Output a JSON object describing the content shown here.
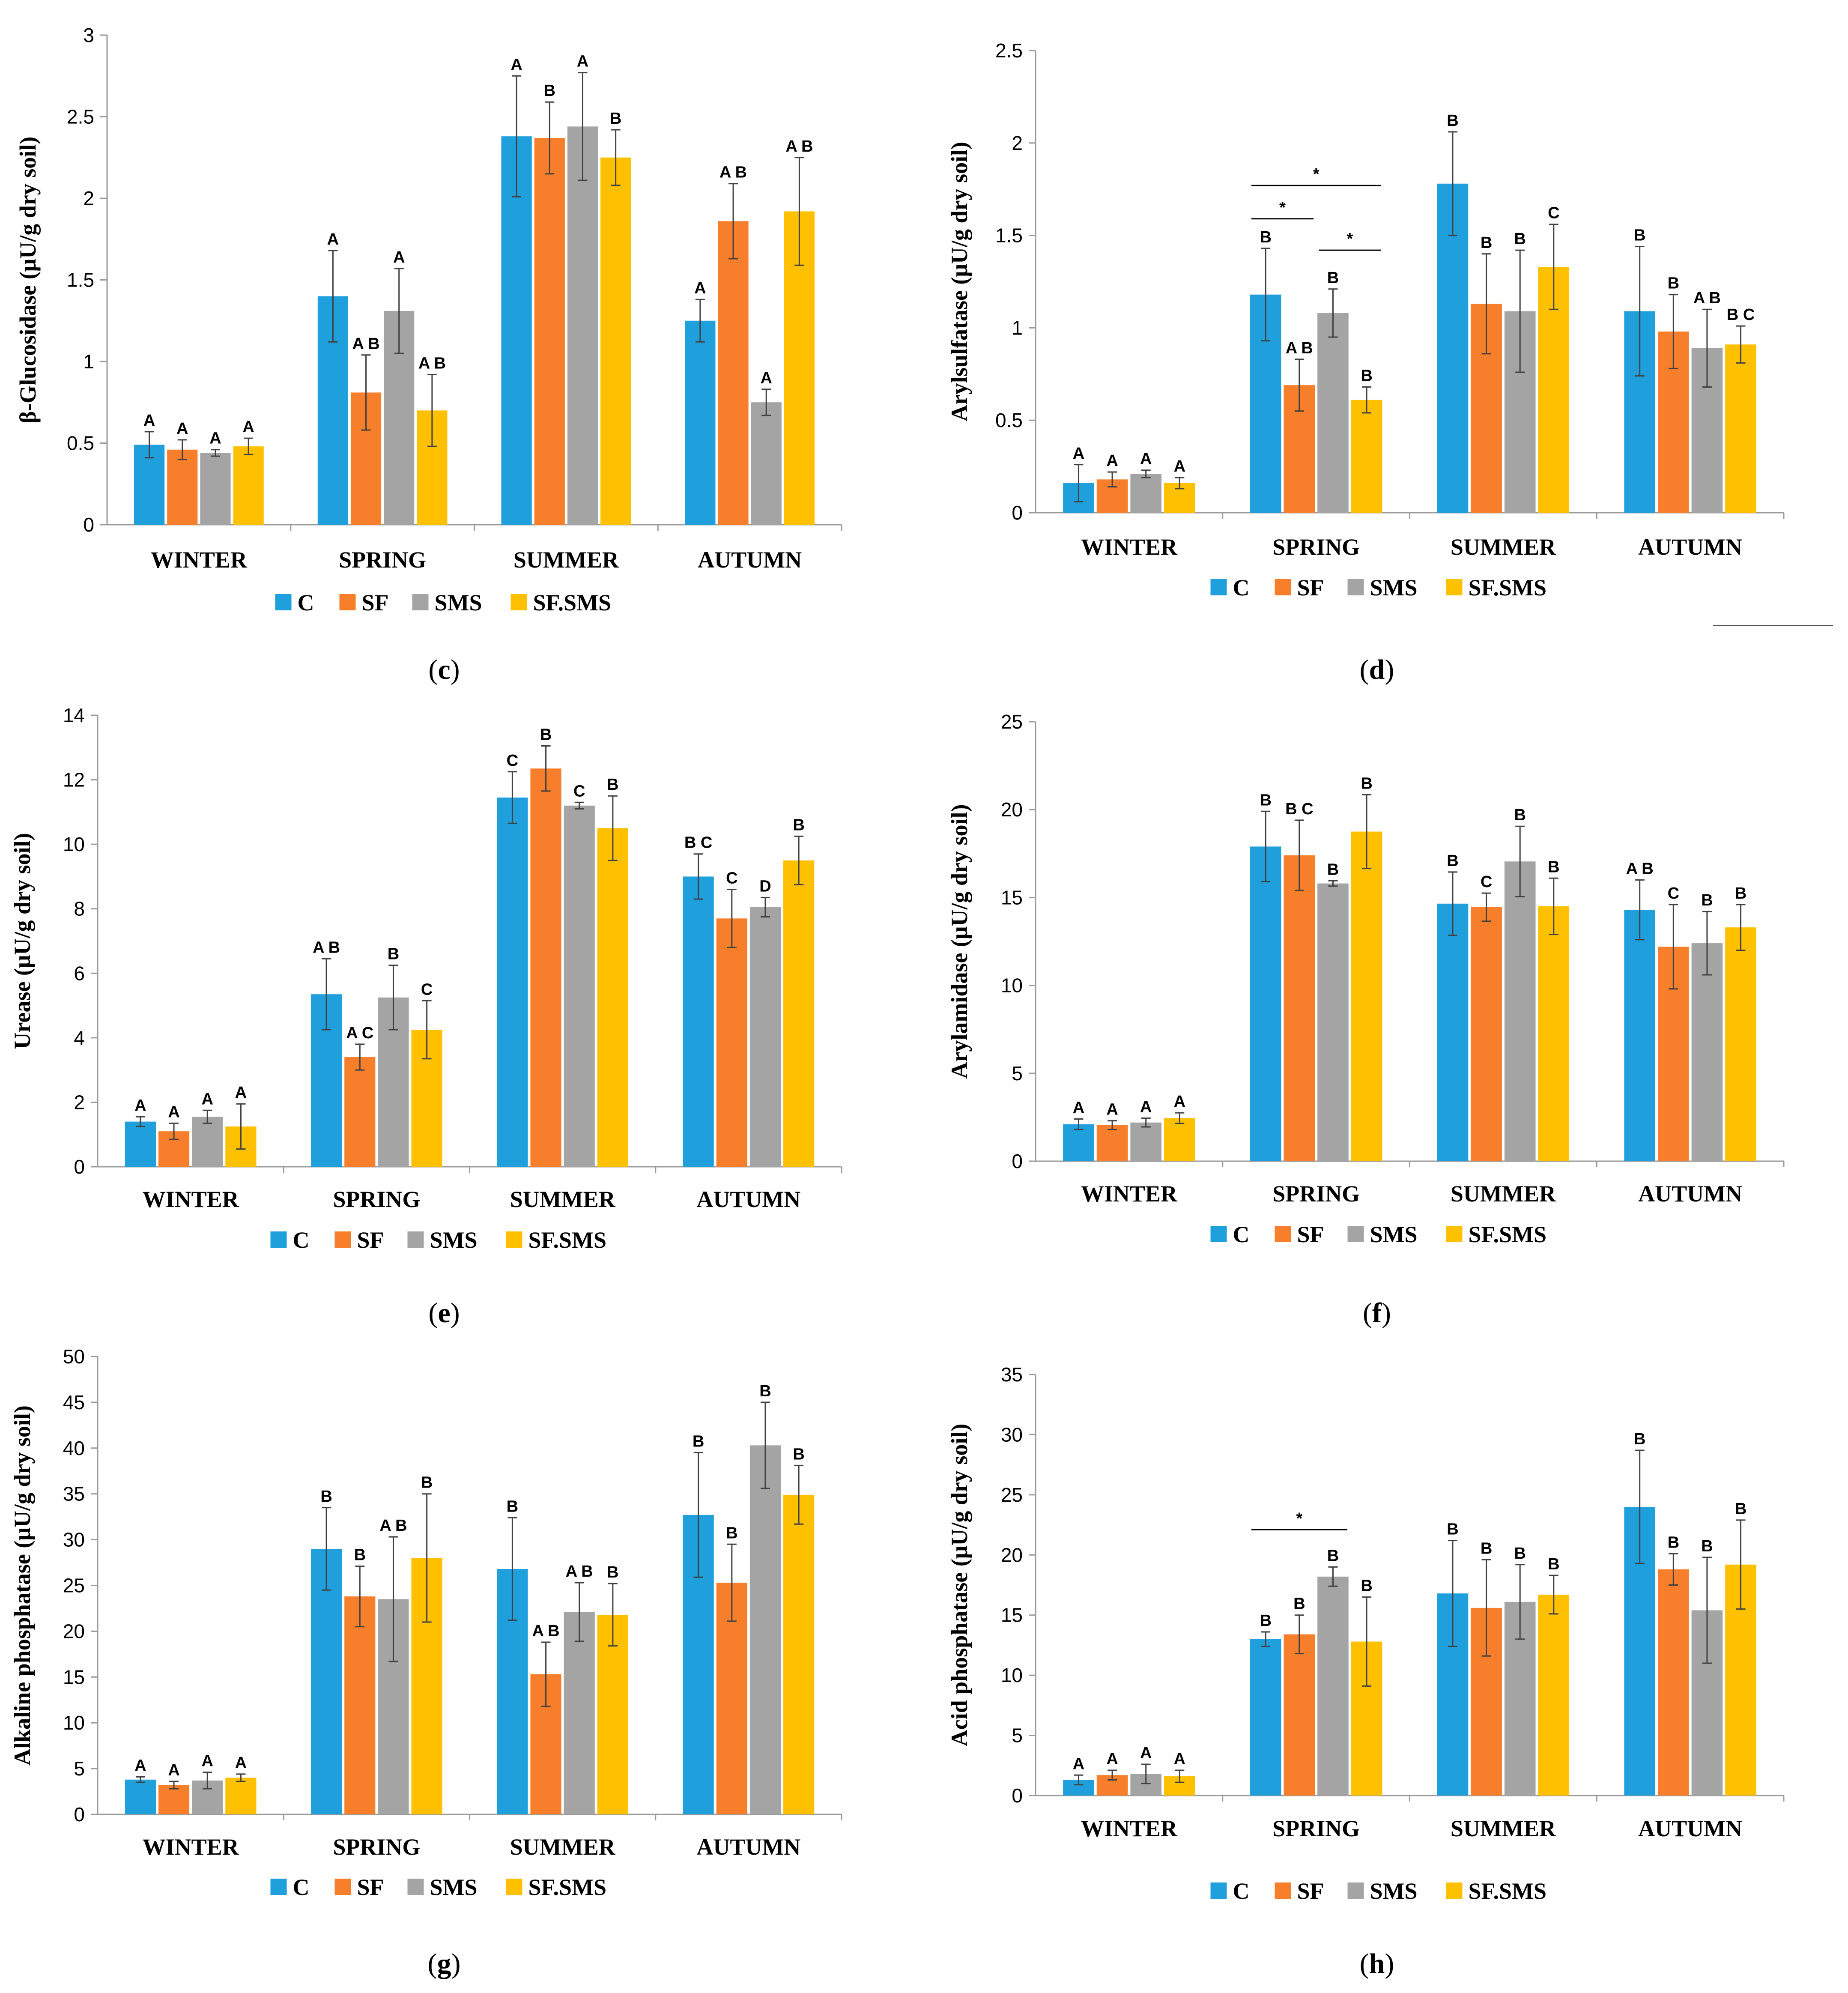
{
  "colors": {
    "C": "#1f9fdc",
    "SF": "#f77f2b",
    "SMS": "#a4a4a4",
    "SF.SMS": "#ffc000"
  },
  "legend": [
    "C",
    "SF",
    "SMS",
    "SF.SMS"
  ],
  "chart_data": [
    {
      "type": "bar",
      "panel": "c",
      "ylabel": "β-Glucosidase (μU/g dry soil)",
      "categories": [
        "WINTER",
        "SPRING",
        "SUMMER",
        "AUTUMN"
      ],
      "ylim": [
        0,
        3
      ],
      "yticks": [
        "0",
        "0.5",
        "1",
        "1.5",
        "2",
        "2.5",
        "3"
      ],
      "series": [
        {
          "name": "C",
          "values": [
            0.49,
            1.4,
            2.38,
            1.25
          ],
          "errors": [
            0.08,
            0.28,
            0.37,
            0.13
          ],
          "labels": [
            "A",
            "A",
            "A",
            "A"
          ]
        },
        {
          "name": "SF",
          "values": [
            0.46,
            0.81,
            2.37,
            1.86
          ],
          "errors": [
            0.06,
            0.23,
            0.22,
            0.23
          ],
          "labels": [
            "A",
            "A B",
            "B",
            "A B"
          ]
        },
        {
          "name": "SMS",
          "values": [
            0.44,
            1.31,
            2.44,
            0.75
          ],
          "errors": [
            0.02,
            0.26,
            0.33,
            0.08
          ],
          "labels": [
            "A",
            "A",
            "A",
            "A"
          ]
        },
        {
          "name": "SF.SMS",
          "values": [
            0.48,
            0.7,
            2.25,
            1.92
          ],
          "errors": [
            0.05,
            0.22,
            0.17,
            0.33
          ],
          "labels": [
            "A",
            "A B",
            "B",
            "A B"
          ]
        }
      ],
      "annotations": []
    },
    {
      "type": "bar",
      "panel": "d",
      "ylabel": "Arylsulfatase (μU/g dry soil)",
      "categories": [
        "WINTER",
        "SPRING",
        "SUMMER",
        "AUTUMN"
      ],
      "ylim": [
        0,
        2.5
      ],
      "yticks": [
        "0",
        "0.5",
        "1",
        "1.5",
        "2",
        "2.5"
      ],
      "series": [
        {
          "name": "C",
          "values": [
            0.16,
            1.18,
            1.78,
            1.09
          ],
          "errors": [
            0.1,
            0.25,
            0.28,
            0.35
          ],
          "labels": [
            "A",
            "B",
            "B",
            "B"
          ]
        },
        {
          "name": "SF",
          "values": [
            0.18,
            0.69,
            1.13,
            0.98
          ],
          "errors": [
            0.04,
            0.14,
            0.27,
            0.2
          ],
          "labels": [
            "A",
            "A B",
            "B",
            "B"
          ]
        },
        {
          "name": "SMS",
          "values": [
            0.21,
            1.08,
            1.09,
            0.89
          ],
          "errors": [
            0.02,
            0.13,
            0.33,
            0.21
          ],
          "labels": [
            "A",
            "B",
            "B",
            "A B"
          ]
        },
        {
          "name": "SF.SMS",
          "values": [
            0.16,
            0.61,
            1.33,
            0.91
          ],
          "errors": [
            0.03,
            0.07,
            0.23,
            0.1
          ],
          "labels": [
            "A",
            "B",
            "C",
            "B C"
          ]
        }
      ],
      "annotations": [
        {
          "text": "*",
          "category": 1,
          "from": 0,
          "to": 1,
          "y": 1.59
        },
        {
          "text": "*",
          "category": 1,
          "from": 0,
          "to": 3,
          "y": 1.77
        },
        {
          "text": "*",
          "category": 1,
          "from": 2,
          "to": 3,
          "y": 1.42
        }
      ]
    },
    {
      "type": "bar",
      "panel": "e",
      "ylabel": "Urease (μU/g dry soil)",
      "categories": [
        "WINTER",
        "SPRING",
        "SUMMER",
        "AUTUMN"
      ],
      "ylim": [
        0,
        14
      ],
      "yticks": [
        "0",
        "2",
        "4",
        "6",
        "8",
        "10",
        "12",
        "14"
      ],
      "series": [
        {
          "name": "C",
          "values": [
            1.4,
            5.35,
            11.45,
            9.0
          ],
          "errors": [
            0.15,
            1.1,
            0.8,
            0.7
          ],
          "labels": [
            "A",
            "A B",
            "C",
            "B C"
          ]
        },
        {
          "name": "SF",
          "values": [
            1.1,
            3.4,
            12.35,
            7.7
          ],
          "errors": [
            0.25,
            0.4,
            0.7,
            0.9
          ],
          "labels": [
            "A",
            "A C",
            "B",
            "C"
          ]
        },
        {
          "name": "SMS",
          "values": [
            1.55,
            5.25,
            11.2,
            8.05
          ],
          "errors": [
            0.2,
            1.0,
            0.1,
            0.3
          ],
          "labels": [
            "A",
            "B",
            "C",
            "D"
          ]
        },
        {
          "name": "SF.SMS",
          "values": [
            1.25,
            4.25,
            10.5,
            9.5
          ],
          "errors": [
            0.7,
            0.9,
            1.0,
            0.75
          ],
          "labels": [
            "A",
            "C",
            "B",
            "B"
          ]
        }
      ],
      "annotations": []
    },
    {
      "type": "bar",
      "panel": "f",
      "ylabel": "Arylamidase (μU/g dry soil)",
      "categories": [
        "WINTER",
        "SPRING",
        "SUMMER",
        "AUTUMN"
      ],
      "ylim": [
        0,
        25
      ],
      "yticks": [
        "0",
        "5",
        "10",
        "15",
        "20",
        "25"
      ],
      "series": [
        {
          "name": "C",
          "values": [
            2.1,
            17.9,
            14.65,
            14.3
          ],
          "errors": [
            0.3,
            2.0,
            1.8,
            1.7
          ],
          "labels": [
            "A",
            "B",
            "B",
            "A B"
          ]
        },
        {
          "name": "SF",
          "values": [
            2.05,
            17.4,
            14.45,
            12.2
          ],
          "errors": [
            0.25,
            2.0,
            0.8,
            2.4
          ],
          "labels": [
            "A",
            "B C",
            "C",
            "C"
          ]
        },
        {
          "name": "SMS",
          "values": [
            2.2,
            15.8,
            17.05,
            12.4
          ],
          "errors": [
            0.25,
            0.15,
            2.0,
            1.8
          ],
          "labels": [
            "A",
            "B",
            "B",
            "B"
          ]
        },
        {
          "name": "SF.SMS",
          "values": [
            2.45,
            18.75,
            14.5,
            13.3
          ],
          "errors": [
            0.3,
            2.1,
            1.6,
            1.3
          ],
          "labels": [
            "A",
            "B",
            "B",
            "B"
          ]
        }
      ],
      "annotations": []
    },
    {
      "type": "bar",
      "panel": "g",
      "ylabel": "Alkaline phosphatase (μU/g dry soil)",
      "categories": [
        "WINTER",
        "SPRING",
        "SUMMER",
        "AUTUMN"
      ],
      "ylim": [
        0,
        50
      ],
      "yticks": [
        "0",
        "5",
        "10",
        "15",
        "20",
        "25",
        "30",
        "35",
        "40",
        "45",
        "50"
      ],
      "series": [
        {
          "name": "C",
          "values": [
            3.8,
            29.0,
            26.8,
            32.7
          ],
          "errors": [
            0.3,
            4.5,
            5.6,
            6.8
          ],
          "labels": [
            "A",
            "B",
            "B",
            "B"
          ]
        },
        {
          "name": "SF",
          "values": [
            3.2,
            23.8,
            15.3,
            25.3
          ],
          "errors": [
            0.4,
            3.3,
            3.5,
            4.2
          ],
          "labels": [
            "A",
            "B",
            "A B",
            "B"
          ]
        },
        {
          "name": "SMS",
          "values": [
            3.7,
            23.5,
            22.1,
            40.3
          ],
          "errors": [
            0.9,
            6.8,
            3.2,
            4.7
          ],
          "labels": [
            "A",
            "A B",
            "A B",
            "B"
          ]
        },
        {
          "name": "SF.SMS",
          "values": [
            4.0,
            28.0,
            21.8,
            34.9
          ],
          "errors": [
            0.4,
            7.0,
            3.4,
            3.2
          ],
          "labels": [
            "A",
            "B",
            "B",
            "B"
          ]
        }
      ],
      "annotations": []
    },
    {
      "type": "bar",
      "panel": "h",
      "ylabel": "Acid phosphatase (μU/g dry soil)",
      "categories": [
        "WINTER",
        "SPRING",
        "SUMMER",
        "AUTUMN"
      ],
      "ylim": [
        0,
        35
      ],
      "yticks": [
        "0",
        "5",
        "10",
        "15",
        "20",
        "25",
        "30",
        "35"
      ],
      "series": [
        {
          "name": "C",
          "values": [
            1.3,
            13.0,
            16.8,
            24.0
          ],
          "errors": [
            0.4,
            0.6,
            4.4,
            4.7
          ],
          "labels": [
            "A",
            "B",
            "B",
            "B"
          ]
        },
        {
          "name": "SF",
          "values": [
            1.7,
            13.4,
            15.6,
            18.8
          ],
          "errors": [
            0.4,
            1.6,
            4.0,
            1.3
          ],
          "labels": [
            "A",
            "B",
            "B",
            "B"
          ]
        },
        {
          "name": "SMS",
          "values": [
            1.8,
            18.2,
            16.1,
            15.4
          ],
          "errors": [
            0.8,
            0.8,
            3.1,
            4.4
          ],
          "labels": [
            "A",
            "B",
            "B",
            "B"
          ]
        },
        {
          "name": "SF.SMS",
          "values": [
            1.6,
            12.8,
            16.7,
            19.2
          ],
          "errors": [
            0.5,
            3.7,
            1.6,
            3.7
          ],
          "labels": [
            "A",
            "B",
            "B",
            "B"
          ]
        }
      ],
      "annotations": [
        {
          "text": "*",
          "category": 1,
          "from": 0,
          "to": 2,
          "y": 22.1
        }
      ]
    }
  ],
  "captions": [
    {
      "open": "(",
      "letter": "c",
      "close": ")"
    },
    {
      "open": "(",
      "letter": "d",
      "close": ")"
    },
    {
      "open": "(",
      "letter": "e",
      "close": ")"
    },
    {
      "open": "(",
      "letter": "f",
      "close": ")"
    },
    {
      "open": "(",
      "letter": "g",
      "close": ")"
    },
    {
      "open": "(",
      "letter": "h",
      "close": ")"
    }
  ]
}
